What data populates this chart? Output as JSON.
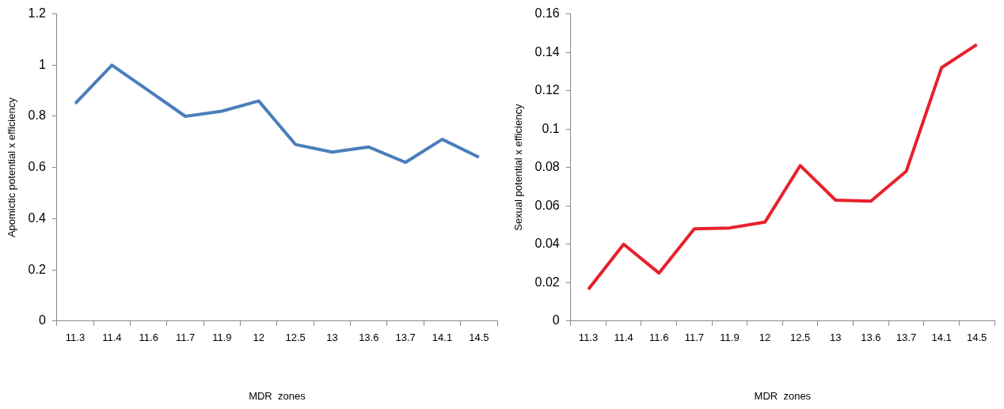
{
  "chart_data": [
    {
      "type": "line",
      "xlabel": "MDR  zones",
      "ylabel": "Apomictic potential x efficiency",
      "categories": [
        "11.3",
        "11.4",
        "11.6",
        "11.7",
        "11.9",
        "12",
        "12.5",
        "13",
        "13.6",
        "13.7",
        "14.1",
        "14.5"
      ],
      "series": [
        {
          "color": "#4a7ebb",
          "values": [
            0.85,
            1.0,
            0.9,
            0.8,
            0.82,
            0.86,
            0.69,
            0.66,
            0.68,
            0.62,
            0.71,
            0.64
          ]
        }
      ],
      "ylim": [
        0,
        1.2
      ],
      "yticks": [
        0,
        0.2,
        0.4,
        0.6,
        0.8,
        1,
        1.2
      ]
    },
    {
      "type": "line",
      "xlabel": "MDR  zones",
      "ylabel": "Sexual potential x efficiency",
      "categories": [
        "11.3",
        "11.4",
        "11.6",
        "11.7",
        "11.9",
        "12",
        "12.5",
        "13",
        "13.6",
        "13.7",
        "14.1",
        "14.5"
      ],
      "series": [
        {
          "color": "#e8202a",
          "values": [
            0.0165,
            0.04,
            0.025,
            0.048,
            0.0485,
            0.0515,
            0.081,
            0.063,
            0.0625,
            0.078,
            0.132,
            0.144
          ]
        }
      ],
      "ylim": [
        0,
        0.16
      ],
      "yticks": [
        0,
        0.02,
        0.04,
        0.06,
        0.08,
        0.1,
        0.12,
        0.14,
        0.16
      ]
    }
  ]
}
